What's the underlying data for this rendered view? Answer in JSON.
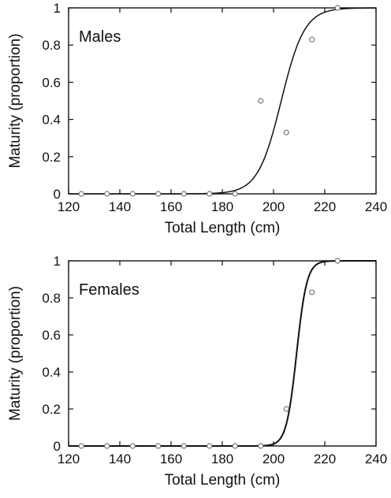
{
  "chart_data": [
    {
      "type": "scatter",
      "panel_label": "Males",
      "xlabel": "Total Length (cm)",
      "ylabel": "Maturity (proportion)",
      "xlim": [
        120,
        240
      ],
      "ylim": [
        0,
        1
      ],
      "xticks": [
        120,
        140,
        160,
        180,
        200,
        220,
        240
      ],
      "yticks": [
        0,
        0.2,
        0.4,
        0.6,
        0.8,
        1
      ],
      "ytick_labels": [
        "0",
        "0.2",
        "0.4",
        "0.6",
        "0.8",
        "1"
      ],
      "grid": false,
      "series": [
        {
          "kind": "points",
          "x": [
            125,
            135,
            145,
            155,
            165,
            175,
            185,
            195,
            205,
            215,
            225
          ],
          "y": [
            0,
            0,
            0,
            0,
            0,
            0,
            0,
            0.5,
            0.33,
            0.83,
            1.0
          ]
        },
        {
          "kind": "logistic_fit",
          "L50": 203,
          "slope": 0.22
        }
      ],
      "colors": {
        "points": "#777777",
        "curve": "#111111"
      }
    },
    {
      "type": "scatter",
      "panel_label": "Females",
      "xlabel": "Total Length (cm)",
      "ylabel": "Maturity (proportion)",
      "xlim": [
        120,
        240
      ],
      "ylim": [
        0,
        1
      ],
      "xticks": [
        120,
        140,
        160,
        180,
        200,
        220,
        240
      ],
      "yticks": [
        0,
        0.2,
        0.4,
        0.6,
        0.8,
        1
      ],
      "ytick_labels": [
        "0",
        "0.2",
        "0.4",
        "0.6",
        "0.8",
        "1"
      ],
      "grid": false,
      "series": [
        {
          "kind": "points",
          "x": [
            125,
            135,
            145,
            155,
            165,
            175,
            185,
            195,
            205,
            215,
            225
          ],
          "y": [
            0,
            0,
            0,
            0,
            0,
            0,
            0,
            0,
            0.2,
            0.83,
            1.0
          ]
        },
        {
          "kind": "logistic_fit",
          "L50": 209,
          "slope": 0.5
        }
      ],
      "colors": {
        "points": "#777777",
        "curve": "#111111"
      }
    }
  ]
}
